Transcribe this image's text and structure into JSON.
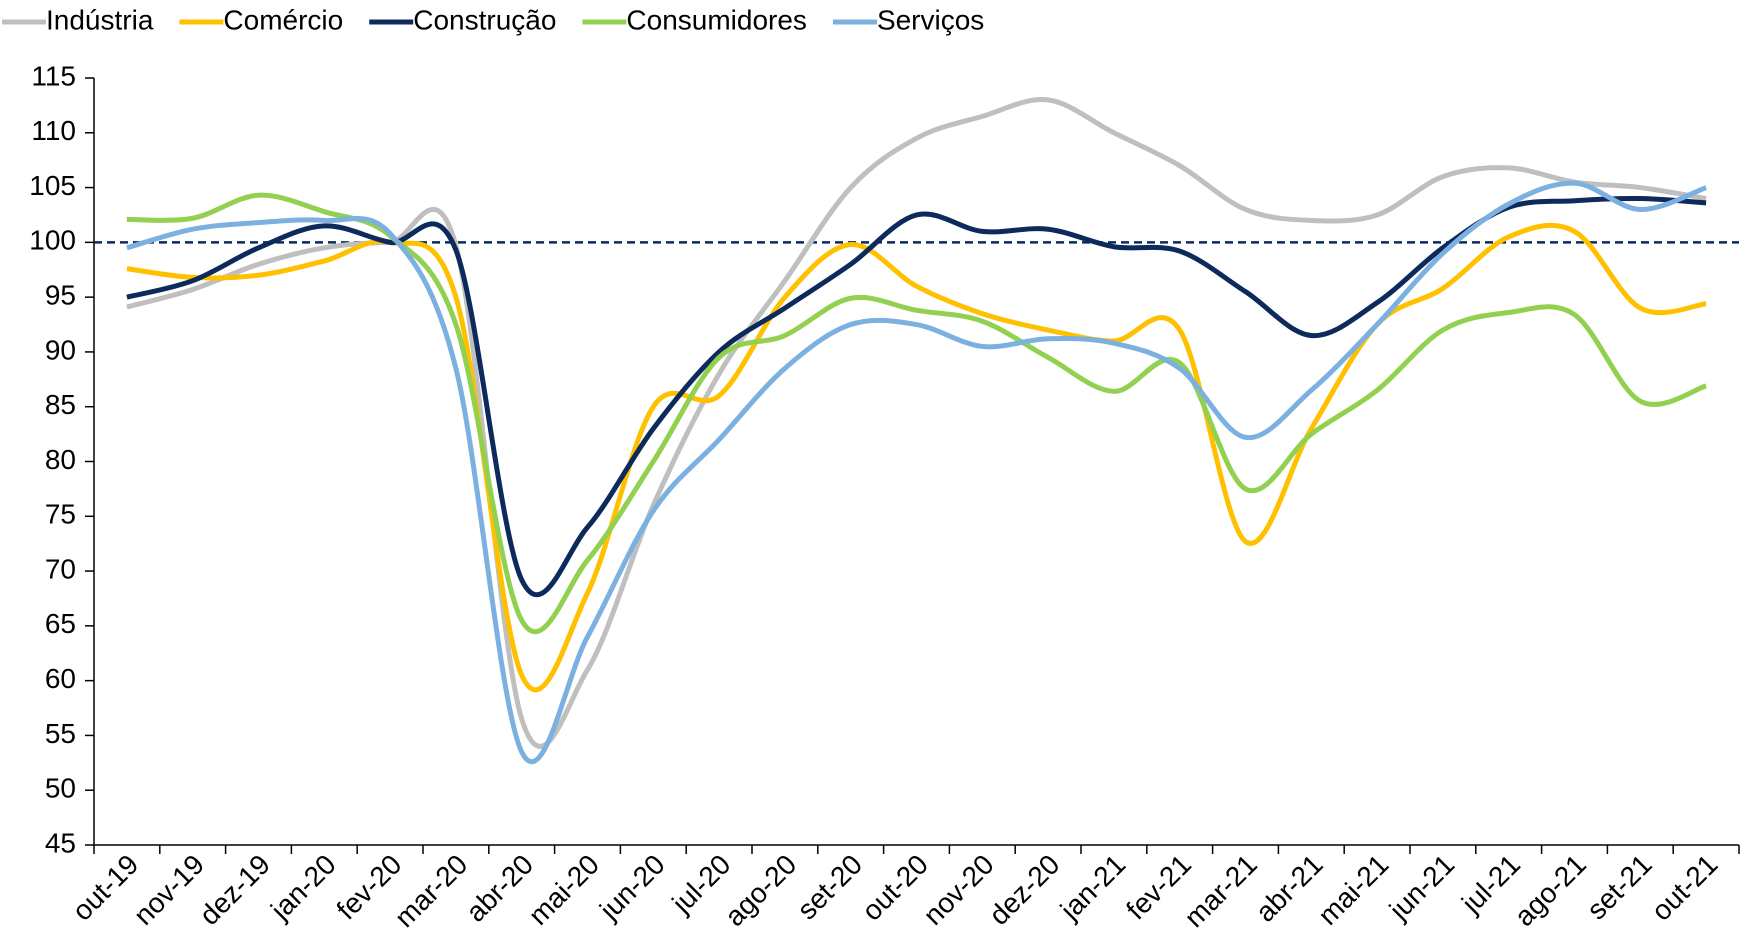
{
  "chart_data": {
    "type": "line",
    "categories": [
      "out-19",
      "nov-19",
      "dez-19",
      "jan-20",
      "fev-20",
      "mar-20",
      "abr-20",
      "mai-20",
      "jun-20",
      "jul-20",
      "ago-20",
      "set-20",
      "out-20",
      "nov-20",
      "dez-20",
      "jan-21",
      "fev-21",
      "mar-21",
      "abr-21",
      "mai-21",
      "jun-21",
      "jul-21",
      "ago-21",
      "set-21",
      "out-21"
    ],
    "series": [
      {
        "name": "Indústria",
        "color": "#bfbfbf",
        "values": [
          94.1,
          95.7,
          98,
          99.5,
          100,
          99.7,
          56.5,
          61,
          76,
          88,
          96.5,
          105,
          109.5,
          111.5,
          113,
          110,
          107,
          103,
          102,
          102.5,
          106,
          106.8,
          105.5,
          105,
          104
        ]
      },
      {
        "name": "Comércio",
        "color": "#ffc000",
        "values": [
          97.6,
          96.8,
          97,
          98.3,
          100,
          95,
          60.5,
          68,
          85,
          86,
          95,
          99.8,
          96,
          93.5,
          92,
          91,
          92,
          72.7,
          83,
          92.5,
          95.8,
          100.5,
          101,
          94,
          94.4
        ]
      },
      {
        "name": "Construção",
        "color": "#0d2a5c",
        "values": [
          95,
          96.5,
          99.5,
          101.5,
          100,
          99.3,
          69.2,
          74,
          83,
          90,
          94,
          98,
          102.5,
          101,
          101.2,
          99.6,
          99.2,
          95.5,
          91.5,
          94.5,
          99.5,
          103.2,
          103.8,
          104,
          103.6
        ]
      },
      {
        "name": "Consumidores",
        "color": "#92d050",
        "values": [
          102.1,
          102.2,
          104.3,
          102.8,
          100.6,
          92.5,
          65.5,
          71,
          80,
          89.5,
          91.5,
          94.9,
          93.8,
          92.8,
          89.5,
          86.4,
          89,
          77.5,
          82.5,
          86.5,
          92,
          93.6,
          93.4,
          85.5,
          86.9
        ]
      },
      {
        "name": "Serviços",
        "color": "#7cb0e0",
        "values": [
          99.5,
          101.2,
          101.8,
          102,
          100.8,
          88.5,
          53.5,
          64,
          75.5,
          82,
          88.5,
          92.5,
          92.5,
          90.5,
          91.2,
          90.8,
          88.5,
          82.2,
          86.5,
          92.5,
          99,
          103.5,
          105.4,
          103,
          105
        ]
      }
    ],
    "ylim": [
      45,
      115
    ],
    "yticks": [
      45,
      50,
      55,
      60,
      65,
      70,
      75,
      80,
      85,
      90,
      95,
      100,
      105,
      110,
      115
    ],
    "reference_line": 100,
    "legend": "top",
    "grid": false
  }
}
